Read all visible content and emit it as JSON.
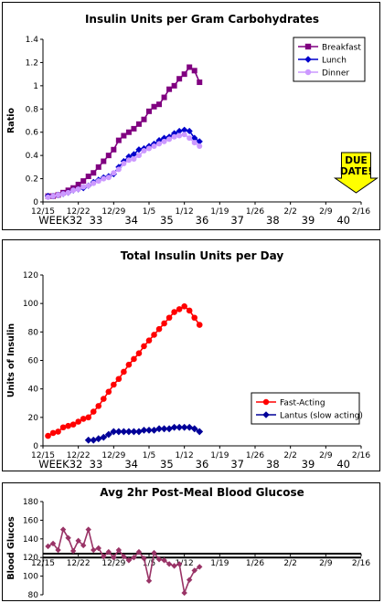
{
  "chart_data": [
    {
      "type": "line",
      "title": "Insulin Units per Gram Carbohydrates",
      "ylabel": "Ratio",
      "ylim": [
        0,
        1.4
      ],
      "yticks": [
        "0",
        "0.2",
        "0.4",
        "0.6",
        "0.8",
        "1",
        "1.2",
        "1.4"
      ],
      "xlim": [
        "12/15",
        "2/16"
      ],
      "xticks": [
        "12/15",
        "12/22",
        "12/29",
        "1/5",
        "1/12",
        "1/19",
        "1/26",
        "2/2",
        "2/9",
        "2/16"
      ],
      "week_labels": [
        "WEEK32",
        "33",
        "34",
        "35",
        "36",
        "37",
        "38",
        "39",
        "40"
      ],
      "legend": "top-right",
      "annotation": {
        "lines": [
          "DUE",
          "DATE!"
        ],
        "color": "#ffff00",
        "date": "2/15"
      },
      "x": [
        "12/16",
        "12/17",
        "12/18",
        "12/19",
        "12/20",
        "12/21",
        "12/22",
        "12/23",
        "12/24",
        "12/25",
        "12/26",
        "12/27",
        "12/28",
        "12/29",
        "12/30",
        "12/31",
        "1/1",
        "1/2",
        "1/3",
        "1/4",
        "1/5",
        "1/6",
        "1/7",
        "1/8",
        "1/9",
        "1/10",
        "1/11",
        "1/12",
        "1/13",
        "1/14",
        "1/15"
      ],
      "series": [
        {
          "name": "Breakfast",
          "color": "#800080",
          "marker": "square",
          "values": [
            0.05,
            0.05,
            0.06,
            0.08,
            0.1,
            0.12,
            0.15,
            0.18,
            0.22,
            0.25,
            0.3,
            0.35,
            0.4,
            0.45,
            0.53,
            0.57,
            0.6,
            0.63,
            0.67,
            0.71,
            0.78,
            0.82,
            0.84,
            0.9,
            0.97,
            1.0,
            1.06,
            1.1,
            1.16,
            1.13,
            1.03
          ]
        },
        {
          "name": "Lunch",
          "color": "#0000cc",
          "marker": "diamond",
          "values": [
            0.05,
            0.05,
            0.06,
            0.07,
            0.08,
            0.1,
            0.11,
            0.12,
            0.14,
            0.17,
            0.19,
            0.21,
            0.22,
            0.24,
            0.3,
            0.35,
            0.39,
            0.41,
            0.45,
            0.46,
            0.48,
            0.5,
            0.53,
            0.55,
            0.56,
            0.59,
            0.61,
            0.62,
            0.61,
            0.55,
            0.52
          ]
        },
        {
          "name": "Dinner",
          "color": "#cc99ff",
          "marker": "circle",
          "values": [
            0.04,
            0.05,
            0.06,
            0.07,
            0.08,
            0.1,
            0.11,
            0.13,
            0.14,
            0.16,
            0.18,
            0.2,
            0.21,
            0.25,
            0.28,
            0.33,
            0.36,
            0.37,
            0.4,
            0.44,
            0.46,
            0.48,
            0.5,
            0.52,
            0.54,
            0.56,
            0.57,
            0.58,
            0.55,
            0.51,
            0.48
          ]
        }
      ]
    },
    {
      "type": "line",
      "title": "Total Insulin Units per Day",
      "ylabel": "Units of Insulin",
      "ylim": [
        0,
        120
      ],
      "yticks": [
        "0",
        "20",
        "40",
        "60",
        "80",
        "100",
        "120"
      ],
      "xlim": [
        "12/15",
        "2/16"
      ],
      "xticks": [
        "12/15",
        "12/22",
        "12/29",
        "1/5",
        "1/12",
        "1/19",
        "1/26",
        "2/2",
        "2/9",
        "2/16"
      ],
      "week_labels": [
        "WEEK32",
        "33",
        "34",
        "35",
        "36",
        "37",
        "38",
        "39",
        "40"
      ],
      "legend": "bottom-right",
      "series": [
        {
          "name": "Fast-Acting",
          "color": "#ff0000",
          "marker": "circle",
          "x": [
            "12/16",
            "12/17",
            "12/18",
            "12/19",
            "12/20",
            "12/21",
            "12/22",
            "12/23",
            "12/24",
            "12/25",
            "12/26",
            "12/27",
            "12/28",
            "12/29",
            "12/30",
            "12/31",
            "1/1",
            "1/2",
            "1/3",
            "1/4",
            "1/5",
            "1/6",
            "1/7",
            "1/8",
            "1/9",
            "1/10",
            "1/11",
            "1/12",
            "1/13",
            "1/14",
            "1/15"
          ],
          "values": [
            7,
            9,
            10,
            13,
            14,
            15,
            17,
            19,
            20,
            24,
            28,
            33,
            38,
            43,
            47,
            52,
            57,
            61,
            65,
            70,
            74,
            78,
            82,
            86,
            90,
            94,
            96,
            98,
            95,
            90,
            85
          ]
        },
        {
          "name": "Lantus (slow acting)",
          "color": "#000099",
          "marker": "diamond",
          "x": [
            "12/24",
            "12/25",
            "12/26",
            "12/27",
            "12/28",
            "12/29",
            "12/30",
            "12/31",
            "1/1",
            "1/2",
            "1/3",
            "1/4",
            "1/5",
            "1/6",
            "1/7",
            "1/8",
            "1/9",
            "1/10",
            "1/11",
            "1/12",
            "1/13",
            "1/14",
            "1/15"
          ],
          "values": [
            4,
            4,
            5,
            6,
            8,
            10,
            10,
            10,
            10,
            10,
            10,
            11,
            11,
            11,
            12,
            12,
            12,
            13,
            13,
            13,
            13,
            12,
            10
          ]
        }
      ]
    },
    {
      "type": "line",
      "title": "Avg 2hr Post-Meal Blood Glucose",
      "ylabel": "Blood Glucos",
      "ylim": [
        80,
        180
      ],
      "yticks": [
        "80",
        "100",
        "120",
        "140",
        "160",
        "180"
      ],
      "xlim": [
        "12/15",
        "2/16"
      ],
      "xticks": [
        "12/15",
        "12/22",
        "12/29",
        "1/5",
        "1/12",
        "1/19",
        "1/26",
        "2/2",
        "2/9",
        "2/16"
      ],
      "reference_line": 120,
      "series": [
        {
          "name": "",
          "color": "#993366",
          "marker": "diamond",
          "x": [
            "12/16",
            "12/17",
            "12/18",
            "12/19",
            "12/20",
            "12/21",
            "12/22",
            "12/23",
            "12/24",
            "12/25",
            "12/26",
            "12/27",
            "12/28",
            "12/29",
            "12/30",
            "12/31",
            "1/1",
            "1/2",
            "1/3",
            "1/4",
            "1/5",
            "1/6",
            "1/7",
            "1/8",
            "1/9",
            "1/10",
            "1/11",
            "1/12",
            "1/13",
            "1/14",
            "1/15"
          ],
          "values": [
            132,
            135,
            128,
            150,
            141,
            127,
            138,
            133,
            150,
            128,
            130,
            121,
            126,
            120,
            128,
            121,
            117,
            120,
            126,
            119,
            95,
            125,
            118,
            117,
            113,
            111,
            113,
            82,
            96,
            106,
            110
          ]
        }
      ]
    }
  ]
}
